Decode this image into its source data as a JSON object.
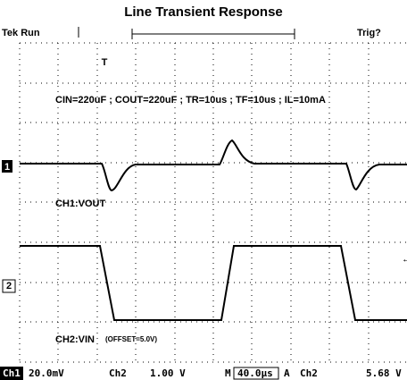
{
  "title": "Line Transient Response",
  "header": {
    "status": "Tek Run",
    "trigger_state": "Trig?"
  },
  "annotation": "CIN=220uF ; COUT=220uF ; TR=10us ; TF=10us ; IL=10mA",
  "channel_labels": {
    "ch1": "CH1:VOUT",
    "ch2": "CH2:VIN",
    "ch2_note": "(OFFSET=5.0V)"
  },
  "markers": {
    "ch1": "1",
    "ch2": "2",
    "trigger": "T"
  },
  "footer": {
    "ch1_name": "Ch1",
    "ch1_scale": "20.0mV",
    "ch2_name": "Ch2",
    "ch2_scale": "1.00 V",
    "time_prefix": "M",
    "time_scale": "40.0µs",
    "trig_prefix": "A",
    "trig_source": "Ch2",
    "trig_level": "5.68 V"
  }
}
